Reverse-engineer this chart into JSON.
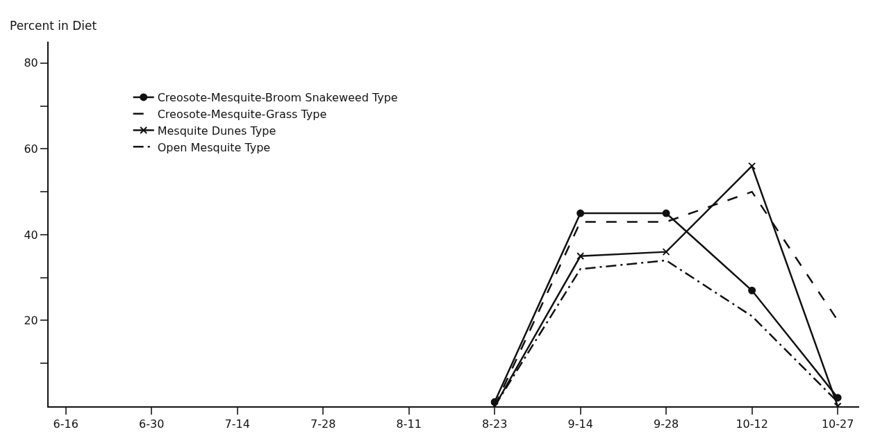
{
  "chart_data": {
    "type": "line",
    "ylabel": "Percent in Diet",
    "categories": [
      "6-16",
      "6-30",
      "7-14",
      "7-28",
      "8-11",
      "8-23",
      "9-14",
      "9-28",
      "10-12",
      "10-27"
    ],
    "series": [
      {
        "name": "Creosote-Mesquite-Broom Snakeweed Type",
        "color": "#111111",
        "marker": "circle",
        "line_style": "solid",
        "values": [
          null,
          null,
          null,
          null,
          null,
          1,
          45,
          45,
          27,
          2
        ]
      },
      {
        "name": "Creosote-Mesquite-Grass Type",
        "color": "#111111",
        "marker": "none",
        "line_style": "dashed",
        "values": [
          null,
          null,
          null,
          null,
          null,
          0,
          43,
          43,
          50,
          20
        ]
      },
      {
        "name": "Mesquite Dunes Type",
        "color": "#111111",
        "marker": "cross",
        "line_style": "solid",
        "values": [
          null,
          null,
          null,
          null,
          null,
          0,
          35,
          36,
          56,
          0
        ]
      },
      {
        "name": "Open Mesquite Type",
        "color": "#111111",
        "marker": "none",
        "line_style": "dashdot",
        "values": [
          null,
          null,
          null,
          null,
          null,
          0,
          32,
          34,
          21,
          1
        ]
      }
    ],
    "ylim": [
      0,
      85
    ],
    "yticks": [
      {
        "value": 10,
        "label": null
      },
      20,
      {
        "value": 30,
        "label": null
      },
      40,
      {
        "value": 50,
        "label": null
      },
      60,
      {
        "value": 70,
        "label": null
      },
      80
    ],
    "legend": "top left"
  }
}
